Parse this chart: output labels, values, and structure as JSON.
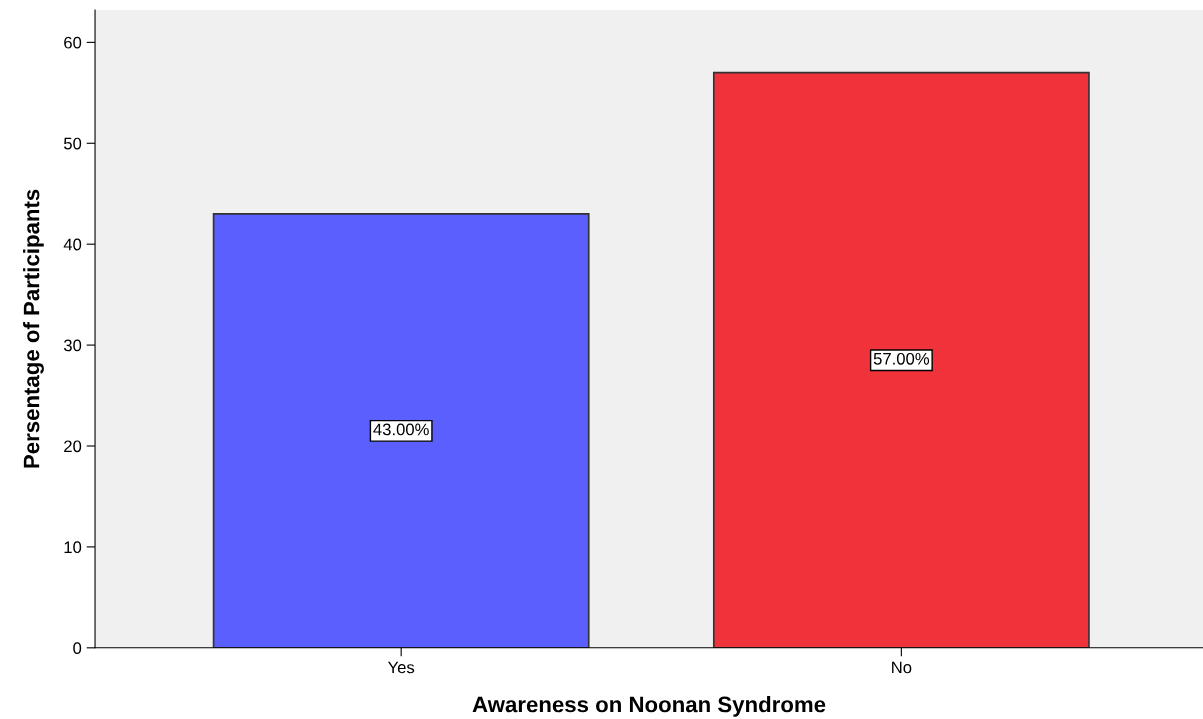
{
  "chart_data": {
    "type": "bar",
    "xlabel": "Awareness on Noonan Syndrome",
    "ylabel": "Persentage of Participants",
    "categories": [
      "Yes",
      "No"
    ],
    "values": [
      43,
      57
    ],
    "colors": [
      "#5b5ffd",
      "#f0323a"
    ],
    "value_labels": [
      "43.00%",
      "57.00%"
    ],
    "ylim": [
      0,
      63.2
    ],
    "yticks": [
      0,
      10,
      20,
      30,
      40,
      50,
      60
    ],
    "grid": false,
    "legend": false
  }
}
